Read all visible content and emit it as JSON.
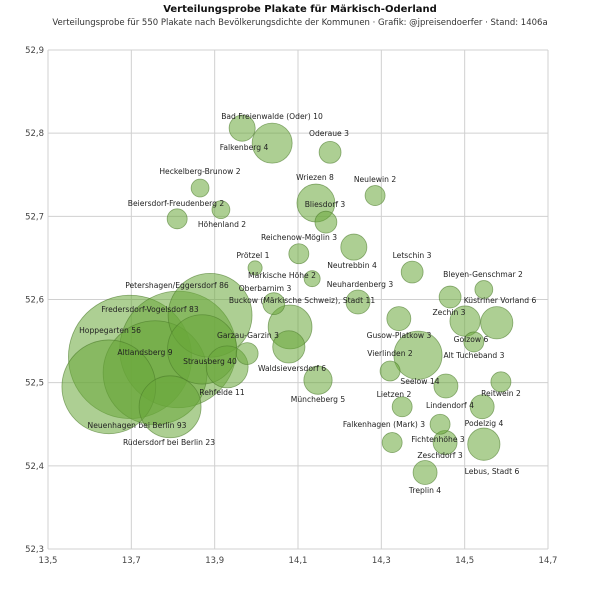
{
  "title": "Verteilungsprobe Plakate für Märkisch-Oderland",
  "subtitle": "Verteilungsprobe für 550 Plakate nach Bevölkerungsdichte der Kommunen · Grafik: @jpreisendoerfer · Stand: 1406a",
  "chart_data": {
    "type": "scatter",
    "title": "Verteilungsprobe Plakate für Märkisch-Oderland",
    "xlim": [
      13.5,
      14.7
    ],
    "ylim": [
      52.3,
      52.9
    ],
    "x_ticks": [
      "13,5",
      "13,7",
      "13,9",
      "14,1",
      "14,3",
      "14,5",
      "14,7"
    ],
    "y_ticks": [
      "52,3",
      "52,4",
      "52,5",
      "52,6",
      "52,7",
      "52,8",
      "52,9"
    ],
    "grid": true,
    "colors": {
      "fill": "#6aa83a",
      "stroke": "#4a7a28",
      "grid": "#d0d0d0"
    },
    "points": [
      {
        "label": "Bad Freienwalde (Oder) 10",
        "x": 13.966,
        "y": 52.806,
        "size": 1.7
      },
      {
        "label": "Falkenberg 4",
        "x": 14.038,
        "y": 52.788,
        "size": 4.0
      },
      {
        "label": "Oderaue 3",
        "x": 14.177,
        "y": 52.777,
        "size": 1.2
      },
      {
        "label": "Heckelberg-Brunow 2",
        "x": 13.865,
        "y": 52.734,
        "size": 0.8
      },
      {
        "label": "Beiersdorf-Freudenberg 2",
        "x": 13.915,
        "y": 52.708,
        "size": 0.8
      },
      {
        "label": "Höhenland 2",
        "x": 13.81,
        "y": 52.697,
        "size": 1.0
      },
      {
        "label": "Wriezen 8",
        "x": 14.143,
        "y": 52.716,
        "size": 3.6
      },
      {
        "label": "Bliesdorf 3",
        "x": 14.167,
        "y": 52.693,
        "size": 1.2
      },
      {
        "label": "Neulewin 2",
        "x": 14.285,
        "y": 52.725,
        "size": 1.0
      },
      {
        "label": "Reichenow-Möglin 3",
        "x": 14.102,
        "y": 52.655,
        "size": 1.0
      },
      {
        "label": "Prötzel 1",
        "x": 13.997,
        "y": 52.638,
        "size": 0.5
      },
      {
        "label": "Märkische Höhe 2",
        "x": 14.134,
        "y": 52.625,
        "size": 0.64
      },
      {
        "label": "Neutrebbin 4",
        "x": 14.234,
        "y": 52.663,
        "size": 1.7
      },
      {
        "label": "Neuhardenberg 3",
        "x": 14.244,
        "y": 52.597,
        "size": 1.44
      },
      {
        "label": "Oberbarnim 3",
        "x": 14.042,
        "y": 52.595,
        "size": 1.2
      },
      {
        "label": "Buckow (Märkische Schweiz), Stadt 11",
        "x": 14.081,
        "y": 52.567,
        "size": 4.8
      },
      {
        "label": "Garzau-Garzin 3",
        "x": 13.978,
        "y": 52.535,
        "size": 1.2
      },
      {
        "label": "Waldsieversdorf 6",
        "x": 14.078,
        "y": 52.543,
        "size": 2.6
      },
      {
        "label": "Müncheberg 5",
        "x": 14.148,
        "y": 52.503,
        "size": 2.0
      },
      {
        "label": "Letschin 3",
        "x": 14.374,
        "y": 52.633,
        "size": 1.2
      },
      {
        "label": "Bleyen-Genschmar 2",
        "x": 14.546,
        "y": 52.612,
        "size": 0.8
      },
      {
        "label": "Küstriner Vorland 6",
        "x": 14.577,
        "y": 52.572,
        "size": 2.6
      },
      {
        "label": "Zechin 3",
        "x": 14.465,
        "y": 52.603,
        "size": 1.2
      },
      {
        "label": "Golzow 6",
        "x": 14.501,
        "y": 52.574,
        "size": 2.3
      },
      {
        "label": "Alt Tucheband 3",
        "x": 14.522,
        "y": 52.549,
        "size": 1.0
      },
      {
        "label": "Gusow-Platkow 3",
        "x": 14.342,
        "y": 52.577,
        "size": 1.44
      },
      {
        "label": "Seelow 14",
        "x": 14.388,
        "y": 52.533,
        "size": 5.8
      },
      {
        "label": "Vierlinden 2",
        "x": 14.321,
        "y": 52.514,
        "size": 1.0
      },
      {
        "label": "Lindendorf 4",
        "x": 14.455,
        "y": 52.496,
        "size": 1.44
      },
      {
        "label": "Reitwein 2",
        "x": 14.587,
        "y": 52.501,
        "size": 1.0
      },
      {
        "label": "Lietzen 2",
        "x": 14.35,
        "y": 52.471,
        "size": 1.0
      },
      {
        "label": "Podelzig 4",
        "x": 14.542,
        "y": 52.471,
        "size": 1.44
      },
      {
        "label": "Falkenhagen (Mark) 3",
        "x": 14.326,
        "y": 52.428,
        "size": 1.0
      },
      {
        "label": "Fichtenhöhe 3",
        "x": 14.441,
        "y": 52.45,
        "size": 1.0
      },
      {
        "label": "Zeschdorf 3",
        "x": 14.453,
        "y": 52.428,
        "size": 1.44
      },
      {
        "label": "Lebus, Stadt 6",
        "x": 14.546,
        "y": 52.426,
        "size": 2.6
      },
      {
        "label": "Treplin 4",
        "x": 14.405,
        "y": 52.392,
        "size": 1.44
      },
      {
        "label": "Petershagen/Eggersdorf 86",
        "x": 13.889,
        "y": 52.581,
        "size": 17.6
      },
      {
        "label": "Fredersdorf-Vogelsdorf 83",
        "x": 13.812,
        "y": 52.54,
        "size": 34
      },
      {
        "label": "Hoppegarten 56",
        "x": 13.697,
        "y": 52.531,
        "size": 38
      },
      {
        "label": "Altlandsberg 9",
        "x": 13.757,
        "y": 52.512,
        "size": 27
      },
      {
        "label": "Strausberg 40",
        "x": 13.93,
        "y": 52.519,
        "size": 4.4
      },
      {
        "label": "Rehfelde 11",
        "x": 13.87,
        "y": 52.54,
        "size": 12
      },
      {
        "label": "Neuenhagen bei Berlin 93",
        "x": 13.646,
        "y": 52.495,
        "size": 22
      },
      {
        "label": "Rüdersdorf bei Berlin 23",
        "x": 13.793,
        "y": 52.471,
        "size": 9.6
      }
    ]
  }
}
